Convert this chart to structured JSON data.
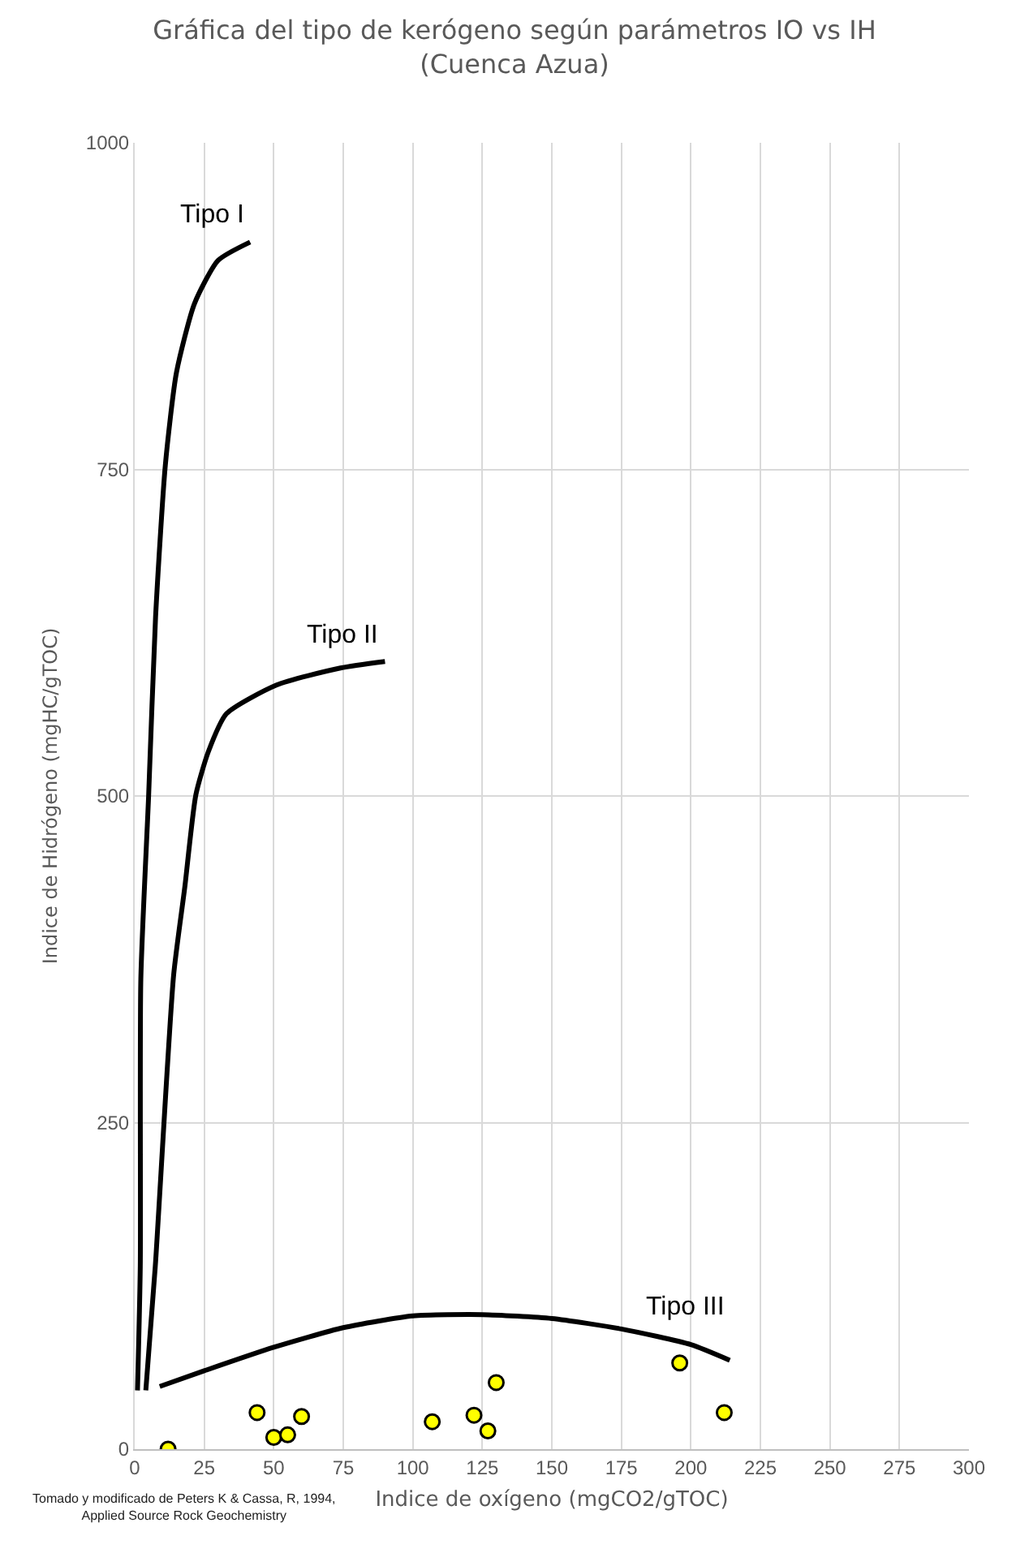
{
  "chart_data": {
    "type": "line",
    "title": "Gráfica del tipo de kerógeno según parámetros IO vs IH\n(Cuenca Azua)",
    "xlabel": "Indice de oxígeno (mgCO2/gTOC)",
    "ylabel": "Indice de Hidrógeno (mgHC/gTOC)",
    "annotations": [
      "Tomado y modificado de Peters K & Cassa, R, 1994,\nApplied Source Rock Geochemistry"
    ],
    "series": [
      {
        "name": "Tipo I",
        "marker": "none",
        "color": "#000000",
        "x": [
          1,
          2,
          2.2,
          5,
          7.5,
          11,
          15,
          21.5,
          30,
          41.5
        ],
        "values": [
          45,
          140,
          360,
          500,
          637,
          753,
          824,
          877,
          910,
          924
        ]
      },
      {
        "name": "Tipo II",
        "marker": "none",
        "color": "#000000",
        "x": [
          4,
          7.4,
          14,
          18,
          22,
          26.5,
          33,
          51,
          74,
          90
        ],
        "values": [
          45,
          140,
          363,
          430,
          501,
          534,
          563,
          585,
          598,
          603
        ]
      },
      {
        "name": "Tipo III",
        "marker": "none",
        "color": "#000000",
        "x": [
          9,
          25,
          50,
          75,
          100,
          125,
          150,
          175,
          200,
          214
        ],
        "values": [
          48,
          60,
          78,
          93,
          102,
          103,
          100,
          92,
          80,
          68
        ]
      },
      {
        "type": "scatter",
        "marker": "circle",
        "color": "#ffff00",
        "x": [
          12,
          44,
          50,
          55,
          60,
          107,
          122,
          127,
          130,
          196,
          212
        ],
        "values": [
          0,
          28,
          9,
          11,
          25,
          21,
          26,
          14,
          51,
          66,
          28
        ]
      }
    ],
    "xlim": [
      0,
      300
    ],
    "xticks": [
      0,
      25,
      50,
      75,
      100,
      125,
      150,
      175,
      200,
      225,
      250,
      275,
      300
    ],
    "ylim": [
      0,
      1000
    ],
    "yticks": [
      0,
      250,
      500,
      750,
      1000
    ],
    "grid": true,
    "legend": false,
    "line_style": "solid"
  }
}
